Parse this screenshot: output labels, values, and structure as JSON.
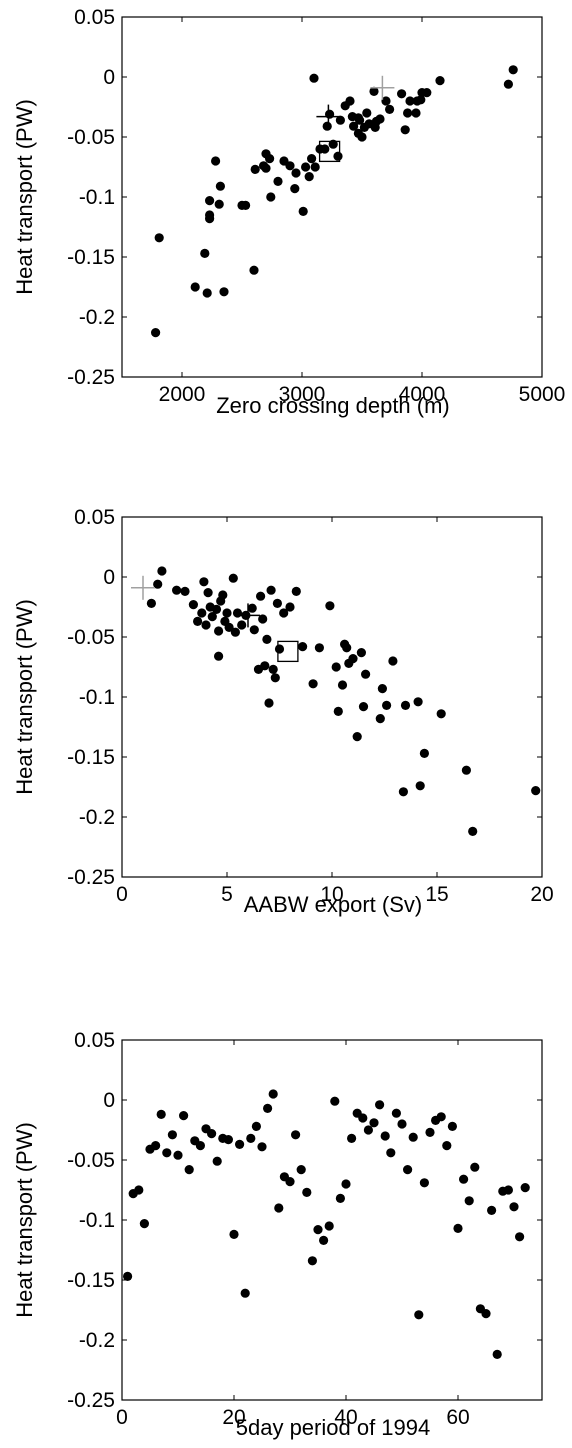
{
  "chart_data": [
    {
      "type": "scatter",
      "title": "",
      "xlabel": "Zero crossing depth (m)",
      "ylabel": "Heat transport (PW)",
      "xlim": [
        1500,
        5000
      ],
      "ylim": [
        -0.25,
        0.05
      ],
      "xticks": [
        "2000",
        "3000",
        "4000",
        "5000"
      ],
      "yticks": [
        "0.05",
        "0",
        "-0.05",
        "-0.1",
        "-0.15",
        "-0.2",
        "-0.25"
      ],
      "grid": false,
      "series": [
        {
          "points": [
            [
              1780,
              -0.213
            ],
            [
              1810,
              -0.134
            ],
            [
              2110,
              -0.175
            ],
            [
              2190,
              -0.147
            ],
            [
              2210,
              -0.18
            ],
            [
              2230,
              -0.103
            ],
            [
              2230,
              -0.115
            ],
            [
              2230,
              -0.118
            ],
            [
              2280,
              -0.07
            ],
            [
              2310,
              -0.106
            ],
            [
              2320,
              -0.091
            ],
            [
              2350,
              -0.179
            ],
            [
              2500,
              -0.107
            ],
            [
              2530,
              -0.107
            ],
            [
              2600,
              -0.161
            ],
            [
              2610,
              -0.077
            ],
            [
              2680,
              -0.074
            ],
            [
              2700,
              -0.064
            ],
            [
              2700,
              -0.076
            ],
            [
              2730,
              -0.068
            ],
            [
              2740,
              -0.1
            ],
            [
              2800,
              -0.087
            ],
            [
              2850,
              -0.07
            ],
            [
              2900,
              -0.074
            ],
            [
              2940,
              -0.093
            ],
            [
              2950,
              -0.08
            ],
            [
              3010,
              -0.112
            ],
            [
              3030,
              -0.075
            ],
            [
              3060,
              -0.083
            ],
            [
              3080,
              -0.068
            ],
            [
              3110,
              -0.075
            ],
            [
              3100,
              -0.001
            ],
            [
              3150,
              -0.06
            ],
            [
              3190,
              -0.06
            ],
            [
              3210,
              -0.041
            ],
            [
              3230,
              -0.031
            ],
            [
              3260,
              -0.056
            ],
            [
              3300,
              -0.066
            ],
            [
              3320,
              -0.036
            ],
            [
              3360,
              -0.024
            ],
            [
              3400,
              -0.02
            ],
            [
              3420,
              -0.033
            ],
            [
              3430,
              -0.041
            ],
            [
              3470,
              -0.047
            ],
            [
              3470,
              -0.034
            ],
            [
              3480,
              -0.036
            ],
            [
              3500,
              -0.05
            ],
            [
              3520,
              -0.042
            ],
            [
              3540,
              -0.03
            ],
            [
              3560,
              -0.039
            ],
            [
              3600,
              -0.012
            ],
            [
              3610,
              -0.042
            ],
            [
              3620,
              -0.037
            ],
            [
              3650,
              -0.035
            ],
            [
              3700,
              -0.02
            ],
            [
              3730,
              -0.027
            ],
            [
              3830,
              -0.014
            ],
            [
              3860,
              -0.044
            ],
            [
              3880,
              -0.03
            ],
            [
              3900,
              -0.02
            ],
            [
              3950,
              -0.03
            ],
            [
              3960,
              -0.02
            ],
            [
              3990,
              -0.019
            ],
            [
              4000,
              -0.013
            ],
            [
              4040,
              -0.013
            ],
            [
              4150,
              -0.003
            ],
            [
              4720,
              -0.006
            ],
            [
              4760,
              0.006
            ]
          ]
        }
      ],
      "markers": [
        {
          "shape": "cross",
          "color": "#000000",
          "x": 3220,
          "y": -0.033
        },
        {
          "shape": "cross",
          "color": "#a0a0a0",
          "x": 3670,
          "y": -0.009
        },
        {
          "shape": "square",
          "color": "#000000",
          "x": 3230,
          "y": -0.062
        }
      ]
    },
    {
      "type": "scatter",
      "title": "",
      "xlabel": "AABW export (Sv)",
      "ylabel": "Heat transport (PW)",
      "xlim": [
        0,
        20
      ],
      "ylim": [
        -0.25,
        0.05
      ],
      "xticks": [
        "0",
        "5",
        "10",
        "15",
        "20"
      ],
      "yticks": [
        "0.05",
        "0",
        "-0.05",
        "-0.1",
        "-0.15",
        "-0.2",
        "-0.25"
      ],
      "grid": false,
      "series": [
        {
          "points": [
            [
              1.4,
              -0.022
            ],
            [
              1.7,
              -0.006
            ],
            [
              1.9,
              0.005
            ],
            [
              2.6,
              -0.011
            ],
            [
              3.0,
              -0.012
            ],
            [
              3.4,
              -0.023
            ],
            [
              3.6,
              -0.037
            ],
            [
              3.8,
              -0.03
            ],
            [
              3.9,
              -0.004
            ],
            [
              4.0,
              -0.04
            ],
            [
              4.1,
              -0.013
            ],
            [
              4.2,
              -0.025
            ],
            [
              4.3,
              -0.033
            ],
            [
              4.5,
              -0.027
            ],
            [
              4.6,
              -0.045
            ],
            [
              4.6,
              -0.066
            ],
            [
              4.7,
              -0.02
            ],
            [
              4.8,
              -0.015
            ],
            [
              4.9,
              -0.037
            ],
            [
              5.0,
              -0.03
            ],
            [
              5.1,
              -0.042
            ],
            [
              5.3,
              -0.001
            ],
            [
              5.4,
              -0.046
            ],
            [
              5.5,
              -0.03
            ],
            [
              5.7,
              -0.04
            ],
            [
              5.9,
              -0.032
            ],
            [
              6.2,
              -0.026
            ],
            [
              6.3,
              -0.044
            ],
            [
              6.5,
              -0.077
            ],
            [
              6.6,
              -0.016
            ],
            [
              6.7,
              -0.035
            ],
            [
              6.8,
              -0.074
            ],
            [
              6.9,
              -0.052
            ],
            [
              7.0,
              -0.105
            ],
            [
              7.1,
              -0.011
            ],
            [
              7.2,
              -0.077
            ],
            [
              7.3,
              -0.084
            ],
            [
              7.4,
              -0.022
            ],
            [
              7.5,
              -0.06
            ],
            [
              7.7,
              -0.03
            ],
            [
              8.0,
              -0.025
            ],
            [
              8.3,
              -0.012
            ],
            [
              8.6,
              -0.058
            ],
            [
              9.1,
              -0.089
            ],
            [
              9.4,
              -0.059
            ],
            [
              9.9,
              -0.024
            ],
            [
              10.2,
              -0.075
            ],
            [
              10.3,
              -0.112
            ],
            [
              10.5,
              -0.09
            ],
            [
              10.6,
              -0.056
            ],
            [
              10.7,
              -0.059
            ],
            [
              10.8,
              -0.072
            ],
            [
              11.0,
              -0.068
            ],
            [
              11.2,
              -0.133
            ],
            [
              11.4,
              -0.063
            ],
            [
              11.5,
              -0.108
            ],
            [
              11.6,
              -0.081
            ],
            [
              12.3,
              -0.118
            ],
            [
              12.4,
              -0.093
            ],
            [
              12.6,
              -0.107
            ],
            [
              12.9,
              -0.07
            ],
            [
              13.4,
              -0.179
            ],
            [
              13.5,
              -0.107
            ],
            [
              14.1,
              -0.104
            ],
            [
              14.2,
              -0.174
            ],
            [
              14.4,
              -0.147
            ],
            [
              15.2,
              -0.114
            ],
            [
              16.4,
              -0.161
            ],
            [
              16.7,
              -0.212
            ],
            [
              19.7,
              -0.178
            ]
          ]
        }
      ],
      "markers": [
        {
          "shape": "cross",
          "color": "#a0a0a0",
          "x": 1.0,
          "y": -0.009
        },
        {
          "shape": "cross",
          "color": "#000000",
          "x": 6.0,
          "y": -0.032
        },
        {
          "shape": "square",
          "color": "#000000",
          "x": 7.9,
          "y": -0.062
        }
      ]
    },
    {
      "type": "scatter",
      "title": "",
      "xlabel": "5day period of 1994",
      "ylabel": "Heat transport (PW)",
      "xlim": [
        0,
        75
      ],
      "ylim": [
        -0.25,
        0.05
      ],
      "xticks": [
        "0",
        "20",
        "40",
        "60"
      ],
      "yticks": [
        "0.05",
        "0",
        "-0.05",
        "-0.1",
        "-0.15",
        "-0.2",
        "-0.25"
      ],
      "grid": false,
      "series": [
        {
          "points": [
            [
              1,
              -0.147
            ],
            [
              2,
              -0.078
            ],
            [
              3,
              -0.075
            ],
            [
              4,
              -0.103
            ],
            [
              5,
              -0.041
            ],
            [
              6,
              -0.038
            ],
            [
              7,
              -0.012
            ],
            [
              8,
              -0.044
            ],
            [
              9,
              -0.029
            ],
            [
              10,
              -0.046
            ],
            [
              11,
              -0.013
            ],
            [
              12,
              -0.058
            ],
            [
              13,
              -0.034
            ],
            [
              14,
              -0.038
            ],
            [
              15,
              -0.024
            ],
            [
              16,
              -0.028
            ],
            [
              17,
              -0.051
            ],
            [
              18,
              -0.032
            ],
            [
              19,
              -0.033
            ],
            [
              20,
              -0.112
            ],
            [
              21,
              -0.037
            ],
            [
              22,
              -0.161
            ],
            [
              23,
              -0.032
            ],
            [
              24,
              -0.022
            ],
            [
              25,
              -0.039
            ],
            [
              26,
              -0.007
            ],
            [
              27,
              0.005
            ],
            [
              28,
              -0.09
            ],
            [
              29,
              -0.064
            ],
            [
              30,
              -0.068
            ],
            [
              31,
              -0.029
            ],
            [
              32,
              -0.058
            ],
            [
              33,
              -0.077
            ],
            [
              34,
              -0.134
            ],
            [
              35,
              -0.108
            ],
            [
              36,
              -0.117
            ],
            [
              37,
              -0.105
            ],
            [
              38,
              -0.001
            ],
            [
              39,
              -0.082
            ],
            [
              40,
              -0.07
            ],
            [
              41,
              -0.032
            ],
            [
              42,
              -0.011
            ],
            [
              43,
              -0.015
            ],
            [
              44,
              -0.025
            ],
            [
              45,
              -0.019
            ],
            [
              46,
              -0.004
            ],
            [
              47,
              -0.03
            ],
            [
              48,
              -0.044
            ],
            [
              49,
              -0.011
            ],
            [
              50,
              -0.02
            ],
            [
              51,
              -0.058
            ],
            [
              52,
              -0.031
            ],
            [
              53,
              -0.179
            ],
            [
              54,
              -0.069
            ],
            [
              55,
              -0.027
            ],
            [
              56,
              -0.017
            ],
            [
              57,
              -0.014
            ],
            [
              58,
              -0.038
            ],
            [
              59,
              -0.022
            ],
            [
              60,
              -0.107
            ],
            [
              61,
              -0.066
            ],
            [
              62,
              -0.084
            ],
            [
              63,
              -0.056
            ],
            [
              64,
              -0.174
            ],
            [
              65,
              -0.178
            ],
            [
              66,
              -0.092
            ],
            [
              67,
              -0.212
            ],
            [
              68,
              -0.076
            ],
            [
              69,
              -0.075
            ],
            [
              70,
              -0.089
            ],
            [
              71,
              -0.114
            ],
            [
              72,
              -0.073
            ]
          ]
        }
      ],
      "markers": []
    }
  ]
}
